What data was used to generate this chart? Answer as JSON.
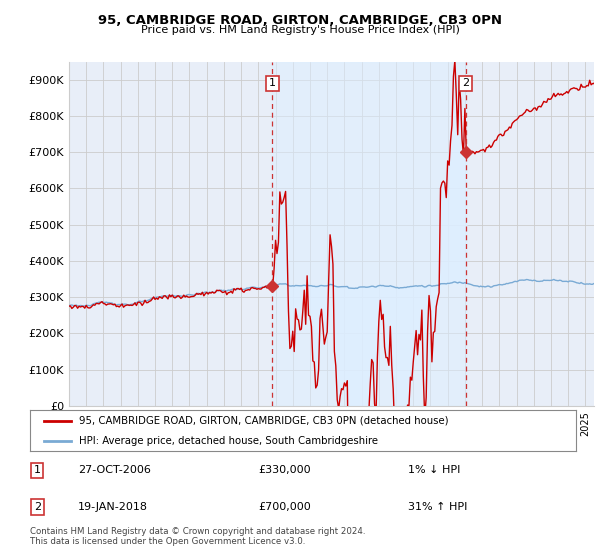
{
  "title": "95, CAMBRIDGE ROAD, GIRTON, CAMBRIDGE, CB3 0PN",
  "subtitle": "Price paid vs. HM Land Registry's House Price Index (HPI)",
  "ylabel_ticks": [
    "£0",
    "£100K",
    "£200K",
    "£300K",
    "£400K",
    "£500K",
    "£600K",
    "£700K",
    "£800K",
    "£900K"
  ],
  "ytick_values": [
    0,
    100000,
    200000,
    300000,
    400000,
    500000,
    600000,
    700000,
    800000,
    900000
  ],
  "ylim": [
    0,
    950000
  ],
  "xlim_start": 1995.0,
  "xlim_end": 2025.5,
  "purchase1_date": 2006.82,
  "purchase1_price": 330000,
  "purchase1_label": "1",
  "purchase2_date": 2018.05,
  "purchase2_price": 700000,
  "purchase2_label": "2",
  "hpi_line_color": "#7aaad4",
  "price_line_color": "#cc0000",
  "fill_color": "#ddeeff",
  "annotation_box_color": "#cc3333",
  "grid_color": "#cccccc",
  "background_color": "#e8eef8",
  "legend_line1": "95, CAMBRIDGE ROAD, GIRTON, CAMBRIDGE, CB3 0PN (detached house)",
  "legend_line2": "HPI: Average price, detached house, South Cambridgeshire",
  "table_row1_num": "1",
  "table_row1_date": "27-OCT-2006",
  "table_row1_price": "£330,000",
  "table_row1_hpi": "1% ↓ HPI",
  "table_row2_num": "2",
  "table_row2_date": "19-JAN-2018",
  "table_row2_price": "£700,000",
  "table_row2_hpi": "31% ↑ HPI",
  "footer": "Contains HM Land Registry data © Crown copyright and database right 2024.\nThis data is licensed under the Open Government Licence v3.0."
}
